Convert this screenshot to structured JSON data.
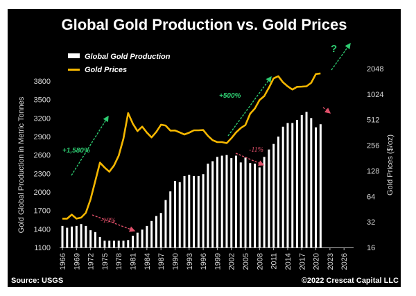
{
  "chart_data": {
    "type": "bar+line",
    "title": "Global Gold Production vs. Gold Prices",
    "source": "Source: USGS",
    "copyright": "©2022 Crescat Capital LLC",
    "ylabel_left": "Gold Global Production in Metric Tonnes",
    "ylabel_right": "Gold Prices ($/oz)",
    "ylim_left": [
      1100,
      3800
    ],
    "yticks_left": [
      1100,
      1400,
      1700,
      2000,
      2300,
      2600,
      2900,
      3200,
      3500,
      3800
    ],
    "ylim_right": [
      16,
      2048
    ],
    "yscale_right": "log2",
    "yticks_right": [
      16,
      32,
      64,
      128,
      256,
      512,
      1024,
      2048
    ],
    "xticks": [
      "1966",
      "1969",
      "1972",
      "1975",
      "1978",
      "1981",
      "1984",
      "1987",
      "1990",
      "1993",
      "1996",
      "1999",
      "2002",
      "2005",
      "2008",
      "2011",
      "2014",
      "2017",
      "2020",
      "2023",
      "2026"
    ],
    "xlim": [
      1966,
      2028
    ],
    "legend": [
      {
        "label": "Global Gold Production",
        "type": "bar",
        "color": "#ffffff"
      },
      {
        "label": "Gold Prices",
        "type": "line",
        "color": "#f5b700"
      }
    ],
    "legend_position": "top-left",
    "series": [
      {
        "name": "Global Gold Production",
        "type": "bar",
        "years": [
          1966,
          1967,
          1968,
          1969,
          1970,
          1971,
          1972,
          1973,
          1974,
          1975,
          1976,
          1977,
          1978,
          1979,
          1980,
          1981,
          1982,
          1983,
          1984,
          1985,
          1986,
          1987,
          1988,
          1989,
          1990,
          1991,
          1992,
          1993,
          1994,
          1995,
          1996,
          1997,
          1998,
          1999,
          2000,
          2001,
          2002,
          2003,
          2004,
          2005,
          2006,
          2007,
          2008,
          2009,
          2010,
          2011,
          2012,
          2013,
          2014,
          2015,
          2016,
          2017,
          2018,
          2019,
          2020,
          2021
        ],
        "values": [
          1450,
          1420,
          1440,
          1450,
          1480,
          1450,
          1380,
          1350,
          1270,
          1210,
          1210,
          1210,
          1210,
          1210,
          1220,
          1290,
          1340,
          1390,
          1450,
          1530,
          1610,
          1660,
          1870,
          2010,
          2180,
          2160,
          2260,
          2280,
          2260,
          2260,
          2290,
          2460,
          2500,
          2570,
          2590,
          2600,
          2550,
          2590,
          2480,
          2560,
          2470,
          2460,
          2400,
          2570,
          2690,
          2780,
          2900,
          3060,
          3120,
          3120,
          3170,
          3250,
          3300,
          3200,
          3050,
          3100
        ]
      },
      {
        "name": "Gold Prices",
        "type": "line",
        "years": [
          1966,
          1967,
          1968,
          1969,
          1970,
          1971,
          1972,
          1973,
          1974,
          1975,
          1976,
          1977,
          1978,
          1979,
          1980,
          1981,
          1982,
          1983,
          1984,
          1985,
          1986,
          1987,
          1988,
          1989,
          1990,
          1991,
          1992,
          1993,
          1994,
          1995,
          1996,
          1997,
          1998,
          1999,
          2000,
          2001,
          2002,
          2003,
          2004,
          2005,
          2006,
          2007,
          2008,
          2009,
          2010,
          2011,
          2012,
          2013,
          2014,
          2015,
          2016,
          2017,
          2018,
          2019,
          2020,
          2021
        ],
        "values": [
          35,
          35,
          39,
          35,
          36,
          41,
          59,
          97,
          160,
          140,
          125,
          148,
          193,
          306,
          612,
          460,
          376,
          424,
          361,
          317,
          368,
          447,
          437,
          381,
          383,
          362,
          343,
          360,
          384,
          384,
          387,
          331,
          294,
          279,
          279,
          271,
          310,
          363,
          409,
          444,
          603,
          695,
          872,
          972,
          1224,
          1571,
          1669,
          1411,
          1266,
          1160,
          1250,
          1257,
          1268,
          1393,
          1770,
          1800
        ]
      }
    ],
    "annotations": [
      {
        "text": "+1,580%",
        "color": "#2ecc71",
        "kind": "up-arrow",
        "from_year": 1969,
        "to_year": 1975
      },
      {
        "text": "-19%",
        "color": "#e0506a",
        "kind": "down-arrow",
        "from_year": 1971,
        "to_year": 1980
      },
      {
        "text": "+500%",
        "color": "#2ecc71",
        "kind": "up-arrow",
        "from_year": 2000,
        "to_year": 2008
      },
      {
        "text": "-11%",
        "color": "#e0506a",
        "kind": "down-arrow",
        "from_year": 2001,
        "to_year": 2008
      },
      {
        "text": "?",
        "color": "#2ecc71",
        "kind": "up-arrow",
        "from_year": 2021,
        "to_year": 2026
      },
      {
        "text": "",
        "color": "#e0506a",
        "kind": "down-arrow",
        "from_year": 2020,
        "to_year": 2021
      }
    ]
  }
}
